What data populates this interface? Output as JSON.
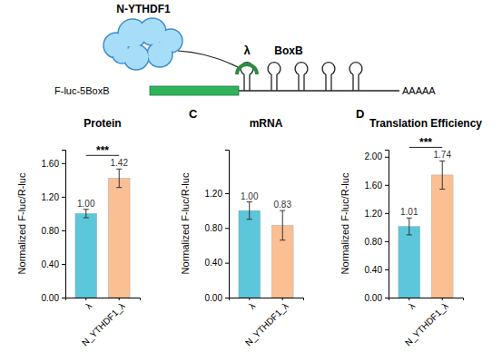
{
  "diagram": {
    "protein": "N-YTHDF1",
    "linker": "λ",
    "hairpin": "BoxB",
    "construct": "F-luc-5BoxB",
    "poly_a": "AAAAA"
  },
  "chart_data": [
    {
      "type": "bar",
      "title": "Protein",
      "y_label": "Normalized F-luc/R-luc",
      "categories": [
        "λ",
        "N_YTHDF1_λ"
      ],
      "values": [
        1.0,
        1.42
      ],
      "value_labels": [
        "1.00",
        "1.42"
      ],
      "errors": [
        0.05,
        0.11
      ],
      "colors": [
        "#5cc6da",
        "#fbbf94"
      ],
      "data_labels": true,
      "significance": "***",
      "ylim": [
        0,
        1.76
      ],
      "yticks": [
        {
          "value": 0,
          "label": "0.00"
        },
        {
          "value": 0.4,
          "label": "0.40"
        },
        {
          "value": 0.8,
          "label": "0.80"
        },
        {
          "value": 1.2,
          "label": "1.20"
        },
        {
          "value": 1.6,
          "label": "1.60"
        }
      ]
    },
    {
      "type": "bar",
      "title": "mRNA",
      "panel_label": "C",
      "y_label": "Normalized F-luc/R-luc",
      "categories": [
        "λ",
        "N_YTHDF1_λ"
      ],
      "values": [
        1.0,
        0.83
      ],
      "value_labels": [
        "1.00",
        "0.83"
      ],
      "errors": [
        0.1,
        0.17
      ],
      "colors": [
        "#5cc6da",
        "#fbbf94"
      ],
      "data_labels": true,
      "ylim": [
        0,
        1.7
      ],
      "yticks": [
        {
          "value": 0,
          "label": "0.00"
        },
        {
          "value": 0.4,
          "label": "0.40"
        },
        {
          "value": 0.8,
          "label": "0.80"
        },
        {
          "value": 1.2,
          "label": "1.20"
        }
      ]
    },
    {
      "type": "bar",
      "title": "Translation Efficiency",
      "panel_label": "D",
      "y_label": "Normalized F-luc/R-luc",
      "categories": [
        "λ",
        "N_YTHDF1_λ"
      ],
      "values": [
        1.01,
        1.74
      ],
      "value_labels": [
        "1.01",
        "1.74"
      ],
      "errors": [
        0.12,
        0.2
      ],
      "colors": [
        "#5cc6da",
        "#fbbf94"
      ],
      "data_labels": true,
      "significance": "***",
      "ylim": [
        0,
        2.1
      ],
      "yticks": [
        {
          "value": 0,
          "label": "0.00"
        },
        {
          "value": 0.4,
          "label": "0.40"
        },
        {
          "value": 0.8,
          "label": "0.80"
        },
        {
          "value": 1.2,
          "label": "1.20"
        },
        {
          "value": 1.6,
          "label": "1.60"
        },
        {
          "value": 2.0,
          "label": "2.00"
        }
      ]
    }
  ]
}
